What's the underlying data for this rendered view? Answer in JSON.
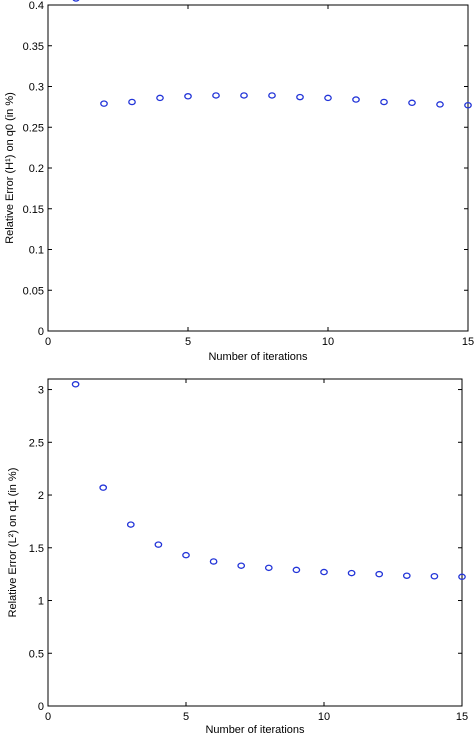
{
  "colors": {
    "marker": "#2234d8"
  },
  "chart_data": [
    {
      "type": "scatter",
      "title": "",
      "xlabel": "Number of iterations",
      "ylabel": "Relative Error (H¹) on q0 (in %)",
      "xlim": [
        0,
        15
      ],
      "ylim": [
        0,
        0.4
      ],
      "xticks": [
        0,
        5,
        10,
        15
      ],
      "yticks": [
        0,
        0.05,
        0.1,
        0.15,
        0.2,
        0.25,
        0.3,
        0.35,
        0.4
      ],
      "ytick_labels": [
        "0",
        "0.05",
        "0.1",
        "0.15",
        "0.2",
        "0.25",
        "0.3",
        "0.35",
        "0.4"
      ],
      "grid": false,
      "series": [
        {
          "x": [
            1,
            2,
            3,
            4,
            5,
            6,
            7,
            8,
            9,
            10,
            11,
            12,
            13,
            14,
            15
          ],
          "y": [
            0.408,
            0.279,
            0.281,
            0.286,
            0.288,
            0.289,
            0.289,
            0.289,
            0.287,
            0.286,
            0.284,
            0.281,
            0.28,
            0.278,
            0.277
          ]
        }
      ]
    },
    {
      "type": "scatter",
      "title": "",
      "xlabel": "Number of iterations",
      "ylabel": "Relative Error (L²) on q1 (in %)",
      "xlim": [
        0,
        15
      ],
      "ylim": [
        0,
        3.1
      ],
      "xticks": [
        0,
        5,
        10,
        15
      ],
      "yticks": [
        0,
        0.5,
        1,
        1.5,
        2,
        2.5,
        3
      ],
      "ytick_labels": [
        "0",
        "0.5",
        "1",
        "1.5",
        "2",
        "2.5",
        "3"
      ],
      "grid": false,
      "series": [
        {
          "x": [
            1,
            2,
            3,
            4,
            5,
            6,
            7,
            8,
            9,
            10,
            11,
            12,
            13,
            14,
            15
          ],
          "y": [
            3.05,
            2.07,
            1.72,
            1.53,
            1.43,
            1.37,
            1.33,
            1.31,
            1.29,
            1.27,
            1.26,
            1.25,
            1.235,
            1.23,
            1.225
          ]
        }
      ]
    }
  ]
}
